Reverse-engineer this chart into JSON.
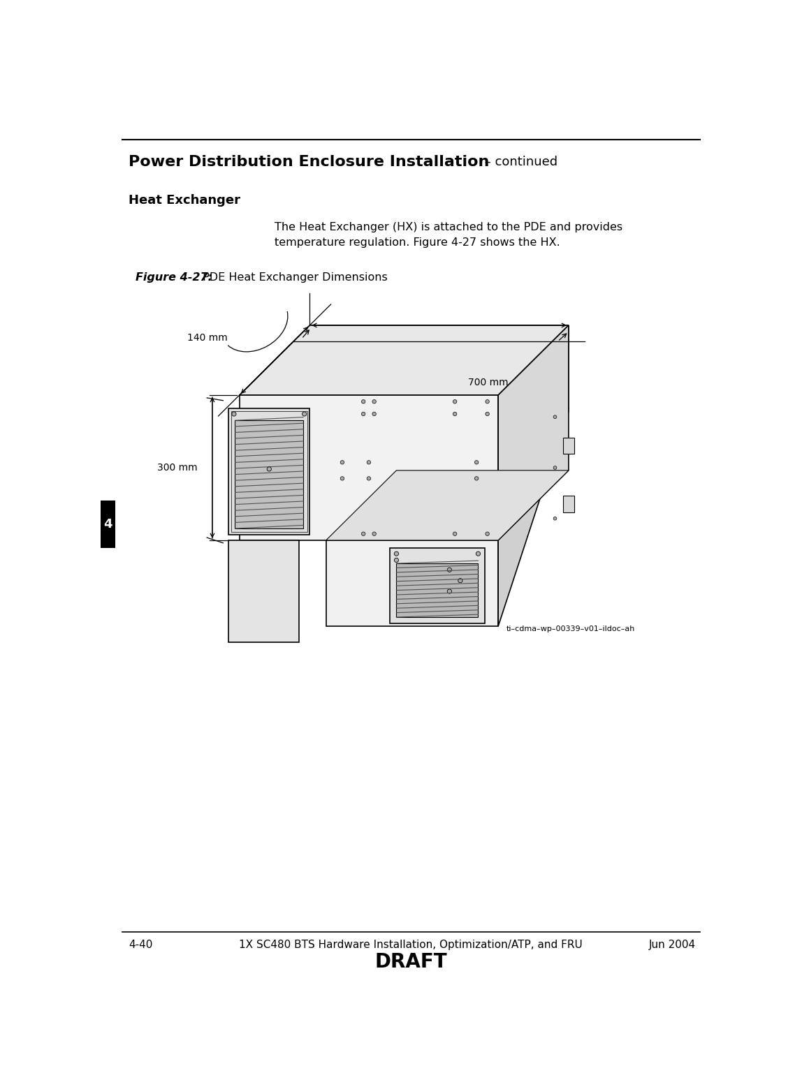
{
  "title_bold": "Power Distribution Enclosure Installation",
  "title_regular": " – continued",
  "section_header": "Heat Exchanger",
  "body_text_line1": "The Heat Exchanger (HX) is attached to the PDE and provides",
  "body_text_line2": "temperature regulation. Figure 4-27 shows the HX.",
  "figure_label_bold": "Figure 4-27:",
  "figure_label_regular": " PDE Heat Exchanger Dimensions",
  "dim_700": "700 mm",
  "dim_140": "140 mm",
  "dim_300": "300 mm",
  "watermark": "ti–cdma–wp–00339–v01–ildoc–ah",
  "footer_left": "4-40",
  "footer_center": "1X SC480 BTS Hardware Installation, Optimization/ATP, and FRU",
  "footer_right": "Jun 2004",
  "footer_draft": "DRAFT",
  "tab_number": "4",
  "bg_color": "#ffffff",
  "text_color": "#000000",
  "tab_color": "#000000"
}
